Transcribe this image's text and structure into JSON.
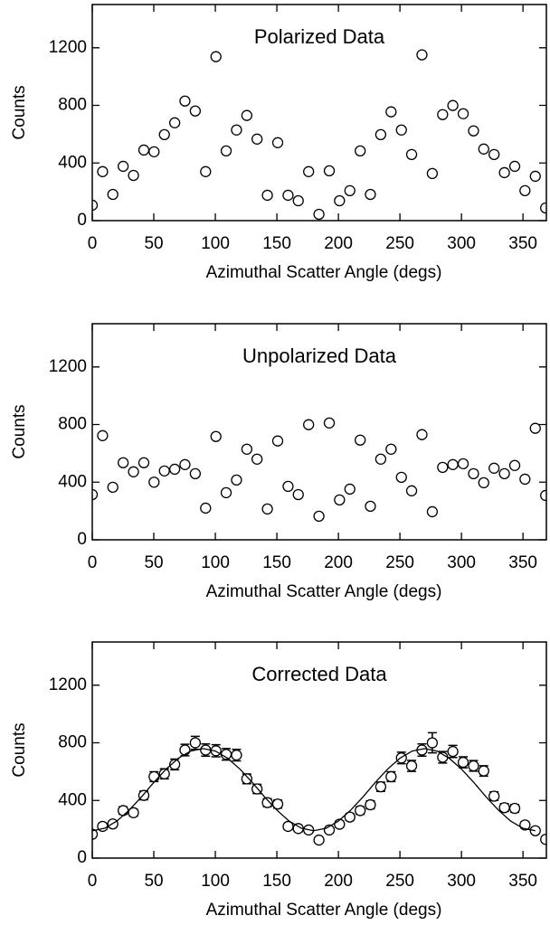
{
  "chart_data": [
    {
      "type": "scatter",
      "title": "Polarized Data",
      "x_label": "Azimuthal Scatter Angle (degs)",
      "y_label": "Counts",
      "xlim": [
        0,
        369
      ],
      "ylim": [
        0,
        1500
      ],
      "xticks": [
        0,
        50,
        100,
        150,
        200,
        250,
        300,
        350
      ],
      "yticks": [
        0,
        400,
        800,
        1200
      ],
      "x": [
        0,
        8.4,
        16.7,
        25.1,
        33.5,
        41.9,
        50.2,
        58.6,
        67.0,
        75.3,
        83.7,
        92.1,
        100.5,
        108.8,
        117.2,
        125.6,
        133.9,
        142.3,
        150.7,
        159.1,
        167.4,
        175.8,
        184.2,
        192.6,
        200.9,
        209.3,
        217.7,
        226.0,
        234.4,
        242.8,
        251.2,
        259.5,
        267.9,
        276.3,
        284.7,
        293.0,
        301.4,
        309.8,
        318.1,
        326.5,
        334.9,
        343.3,
        351.6,
        360.0,
        368.4
      ],
      "series": [
        {
          "style": "markers",
          "color": "#000000",
          "values": [
            107,
            340,
            182,
            377,
            314,
            490,
            478,
            597,
            679,
            830,
            761,
            340,
            1138,
            484,
            629,
            730,
            566,
            176,
            541,
            176,
            138,
            340,
            44,
            346,
            138,
            208,
            484,
            182,
            597,
            755,
            629,
            459,
            1151,
            327,
            736,
            799,
            742,
            623,
            497,
            459,
            333,
            377,
            208,
            308,
            88
          ]
        }
      ]
    },
    {
      "type": "scatter",
      "title": "Unpolarized Data",
      "x_label": "Azimuthal Scatter Angle (degs)",
      "y_label": "Counts",
      "xlim": [
        0,
        369
      ],
      "ylim": [
        0,
        1500
      ],
      "xticks": [
        0,
        50,
        100,
        150,
        200,
        250,
        300,
        350
      ],
      "yticks": [
        0,
        400,
        800,
        1200
      ],
      "x": [
        0,
        8.4,
        16.7,
        25.1,
        33.5,
        41.9,
        50.2,
        58.6,
        67.0,
        75.3,
        83.7,
        92.1,
        100.5,
        108.8,
        117.2,
        125.6,
        133.9,
        142.3,
        150.7,
        159.1,
        167.4,
        175.8,
        184.2,
        192.6,
        200.9,
        209.3,
        217.7,
        226.0,
        234.4,
        242.8,
        251.2,
        259.5,
        267.9,
        276.3,
        284.7,
        293.0,
        301.4,
        309.8,
        318.1,
        326.5,
        334.9,
        343.3,
        351.6,
        360.0,
        368.4
      ],
      "series": [
        {
          "style": "markers",
          "color": "#000000",
          "values": [
            314,
            723,
            365,
            535,
            472,
            535,
            400,
            478,
            490,
            522,
            459,
            220,
            717,
            327,
            415,
            629,
            560,
            214,
            686,
            371,
            314,
            799,
            164,
            811,
            277,
            352,
            692,
            233,
            560,
            629,
            434,
            340,
            730,
            195,
            503,
            522,
            528,
            459,
            396,
            497,
            459,
            516,
            421,
            774,
            308
          ]
        }
      ]
    },
    {
      "type": "scatter",
      "title": "Corrected Data",
      "x_label": "Azimuthal Scatter Angle (degs)",
      "y_label": "Counts",
      "xlim": [
        0,
        369
      ],
      "ylim": [
        0,
        1500
      ],
      "xticks": [
        0,
        50,
        100,
        150,
        200,
        250,
        300,
        350
      ],
      "yticks": [
        0,
        400,
        800,
        1200
      ],
      "x": [
        0,
        8.4,
        16.7,
        25.1,
        33.5,
        41.9,
        50.2,
        58.6,
        67.0,
        75.3,
        83.7,
        92.1,
        100.5,
        108.8,
        117.2,
        125.6,
        133.9,
        142.3,
        150.7,
        159.1,
        167.4,
        175.8,
        184.2,
        192.6,
        200.9,
        209.3,
        217.7,
        226.0,
        234.4,
        242.8,
        251.2,
        259.5,
        267.9,
        276.3,
        284.7,
        293.0,
        301.4,
        309.8,
        318.1,
        326.5,
        334.9,
        343.3,
        351.6,
        360.0,
        368.4
      ],
      "series": [
        {
          "style": "markers",
          "color": "#000000",
          "values": [
            165,
            220,
            237,
            330,
            315,
            435,
            565,
            585,
            650,
            750,
            800,
            750,
            745,
            720,
            715,
            550,
            480,
            385,
            375,
            220,
            205,
            195,
            125,
            195,
            235,
            285,
            330,
            370,
            495,
            565,
            695,
            640,
            750,
            800,
            700,
            740,
            665,
            640,
            605,
            430,
            350,
            345,
            230,
            190,
            130
          ],
          "errors": [
            20,
            22,
            22,
            26,
            25,
            30,
            34,
            35,
            37,
            40,
            45,
            42,
            42,
            40,
            40,
            34,
            32,
            28,
            28,
            22,
            21,
            20,
            18,
            20,
            22,
            24,
            26,
            28,
            32,
            34,
            40,
            38,
            42,
            70,
            40,
            42,
            38,
            37,
            36,
            30,
            27,
            27,
            22,
            20,
            18
          ]
        },
        {
          "style": "line",
          "color": "#000000",
          "x": [
            0,
            10,
            20,
            30,
            40,
            50,
            60,
            70,
            80,
            90,
            100,
            110,
            120,
            130,
            140,
            150,
            160,
            170,
            180,
            190,
            200,
            210,
            220,
            230,
            240,
            250,
            260,
            270,
            280,
            290,
            300,
            310,
            320,
            330,
            340,
            350,
            360
          ],
          "values": [
            190,
            207,
            257,
            333,
            425,
            525,
            618,
            693,
            743,
            760,
            743,
            693,
            618,
            525,
            425,
            333,
            257,
            207,
            190,
            207,
            257,
            333,
            425,
            525,
            618,
            693,
            743,
            760,
            743,
            693,
            618,
            525,
            425,
            333,
            257,
            207,
            190
          ]
        }
      ]
    }
  ]
}
